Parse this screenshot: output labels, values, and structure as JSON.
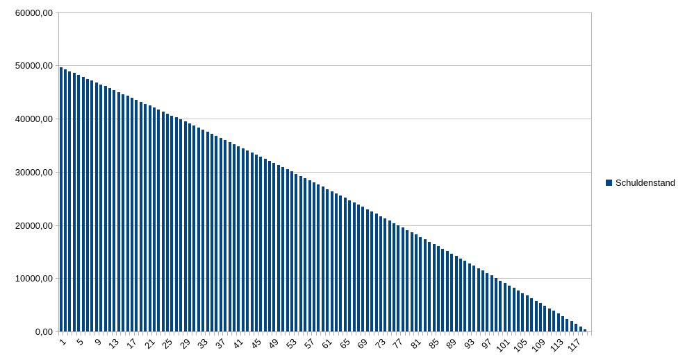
{
  "chart_data": {
    "type": "bar",
    "title": "",
    "xlabel": "",
    "ylabel": "",
    "ylim": [
      0,
      60000
    ],
    "y_tick_step": 10000,
    "y_tick_labels": [
      "0,00",
      "10000,00",
      "20000,00",
      "30000,00",
      "40000,00",
      "50000,00",
      "60000,00"
    ],
    "x_label_every": 4,
    "x_tick_labels": [
      "1",
      "5",
      "9",
      "13",
      "17",
      "21",
      "25",
      "29",
      "33",
      "37",
      "41",
      "45",
      "49",
      "53",
      "57",
      "61",
      "65",
      "69",
      "73",
      "77",
      "81",
      "85",
      "89",
      "93",
      "97",
      "101",
      "105",
      "109",
      "113",
      "117"
    ],
    "grid": true,
    "legend_position": "right",
    "colors": {
      "bar": "#004586",
      "grid": "#c6c6c6",
      "axis": "#b3b3b3",
      "text": "#000000",
      "background": "#ffffff"
    },
    "categories": [
      1,
      2,
      3,
      4,
      5,
      6,
      7,
      8,
      9,
      10,
      11,
      12,
      13,
      14,
      15,
      16,
      17,
      18,
      19,
      20,
      21,
      22,
      23,
      24,
      25,
      26,
      27,
      28,
      29,
      30,
      31,
      32,
      33,
      34,
      35,
      36,
      37,
      38,
      39,
      40,
      41,
      42,
      43,
      44,
      45,
      46,
      47,
      48,
      49,
      50,
      51,
      52,
      53,
      54,
      55,
      56,
      57,
      58,
      59,
      60,
      61,
      62,
      63,
      64,
      65,
      66,
      67,
      68,
      69,
      70,
      71,
      72,
      73,
      74,
      75,
      76,
      77,
      78,
      79,
      80,
      81,
      82,
      83,
      84,
      85,
      86,
      87,
      88,
      89,
      90,
      91,
      92,
      93,
      94,
      95,
      96,
      97,
      98,
      99,
      100,
      101,
      102,
      103,
      104,
      105,
      106,
      107,
      108,
      109,
      110,
      111,
      112,
      113,
      114,
      115,
      116,
      117,
      118,
      119,
      120
    ],
    "series": [
      {
        "name": "Schuldenstand",
        "color": "#004586",
        "values": [
          49653.2,
          49305.36,
          48956.48,
          48606.55,
          48255.57,
          47903.54,
          47550.45,
          47196.3,
          46841.09,
          46484.81,
          46127.47,
          45769.05,
          45409.56,
          45048.99,
          44687.34,
          44324.6,
          43960.77,
          43595.85,
          43229.84,
          42862.73,
          42494.52,
          42125.2,
          41754.78,
          41383.24,
          41010.59,
          40636.82,
          40261.93,
          39885.92,
          39508.78,
          39130.51,
          38751.1,
          38370.55,
          37988.86,
          37606.03,
          37222.05,
          36836.92,
          36450.63,
          36063.18,
          35674.57,
          35284.79,
          34893.84,
          34501.72,
          34108.43,
          33713.96,
          33318.3,
          32921.45,
          32523.41,
          32124.18,
          31723.75,
          31322.12,
          30919.29,
          30515.25,
          30110.0,
          29703.53,
          29295.84,
          28886.93,
          28476.79,
          28065.42,
          27652.82,
          27238.98,
          26823.9,
          26407.57,
          25989.99,
          25571.16,
          25151.07,
          24729.72,
          24307.11,
          23883.23,
          23458.08,
          23031.65,
          22603.94,
          22174.95,
          21744.67,
          21313.1,
          20880.24,
          20446.08,
          20010.62,
          19573.85,
          19135.77,
          18696.38,
          18255.67,
          17813.64,
          17370.28,
          16925.59,
          16479.57,
          16032.21,
          15583.51,
          15133.46,
          14682.06,
          14229.31,
          13775.2,
          13319.73,
          12862.89,
          12404.68,
          11945.09,
          11484.13,
          11021.78,
          10558.05,
          10092.92,
          9626.4,
          9158.48,
          8689.16,
          8218.43,
          7746.29,
          7272.73,
          6797.75,
          6321.34,
          5843.5,
          5364.23,
          4883.52,
          4401.37,
          3917.77,
          3432.72,
          2946.22,
          2458.26,
          1968.83,
          1477.94,
          985.57,
          491.73,
          0.0
        ]
      }
    ]
  }
}
